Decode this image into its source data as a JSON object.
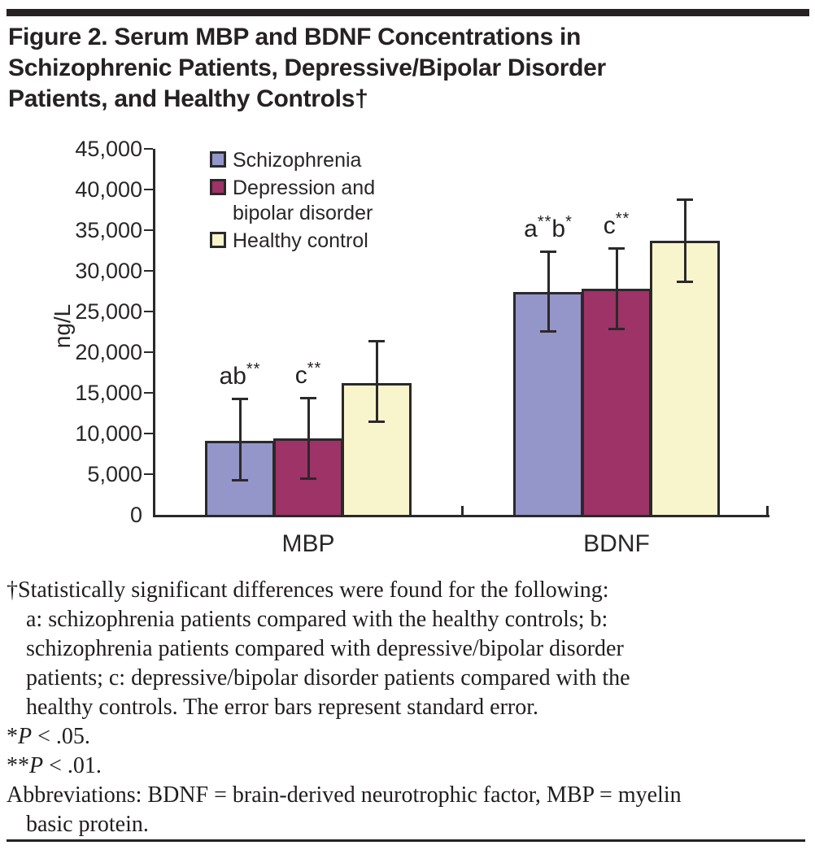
{
  "figure": {
    "title_line1": "Figure 2. Serum MBP and BDNF Concentrations in",
    "title_line2": "Schizophrenic Patients, Depressive/Bipolar Disorder",
    "title_line3": "Patients, and Healthy Controls†"
  },
  "chart_data": {
    "type": "bar",
    "ylabel": "ng/L",
    "ylim": [
      0,
      45000
    ],
    "ytick_step": 5000,
    "ytick_labels": [
      "0",
      "5,000",
      "10,000",
      "15,000",
      "20,000",
      "25,000",
      "30,000",
      "35,000",
      "40,000",
      "45,000"
    ],
    "categories": [
      "MBP",
      "BDNF"
    ],
    "series": [
      {
        "name": "Schizophrenia",
        "color": "#9495c8",
        "values": [
          9100,
          27400
        ],
        "error_low": [
          4200,
          22500
        ],
        "error_high": [
          14300,
          32400
        ]
      },
      {
        "name": "Depression and bipolar disorder",
        "color": "#9d3367",
        "values": [
          9400,
          27800
        ],
        "error_low": [
          4400,
          22800
        ],
        "error_high": [
          14400,
          32800
        ]
      },
      {
        "name": "Healthy control",
        "color": "#f8f5cc",
        "values": [
          16200,
          33700
        ],
        "error_low": [
          11400,
          28600
        ],
        "error_high": [
          21400,
          38800
        ]
      }
    ],
    "annotations": [
      {
        "cat": 0,
        "series": 0,
        "parts": [
          {
            "t": "ab",
            "sup": "**"
          }
        ]
      },
      {
        "cat": 0,
        "series": 1,
        "parts": [
          {
            "t": "c",
            "sup": "**"
          }
        ]
      },
      {
        "cat": 1,
        "series": 0,
        "parts": [
          {
            "t": "a",
            "sup": "**"
          },
          {
            "t": "b",
            "sup": "*"
          }
        ]
      },
      {
        "cat": 1,
        "series": 1,
        "parts": [
          {
            "t": "c",
            "sup": "**"
          }
        ]
      }
    ],
    "error_bars": "standard error",
    "legend_position": "top-left-inside",
    "grid": false
  },
  "footnote": {
    "line1": "†Statistically significant differences were found for the following:",
    "line2": "a: schizophrenia patients compared with the healthy controls; b:",
    "line3": "schizophrenia patients compared with depressive/bipolar disorder",
    "line4": "patients; c: depressive/bipolar disorder patients compared with the",
    "line5": "healthy controls. The error bars represent standard error.",
    "p1_stars": "*",
    "p1_p": "P",
    "p1_rest": " < .05.",
    "p2_stars": "**",
    "p2_p": "P",
    "p2_rest": " < .01.",
    "abbrev_line1": "Abbreviations: BDNF = brain-derived neurotrophic factor, MBP = myelin",
    "abbrev_line2": "basic protein."
  }
}
